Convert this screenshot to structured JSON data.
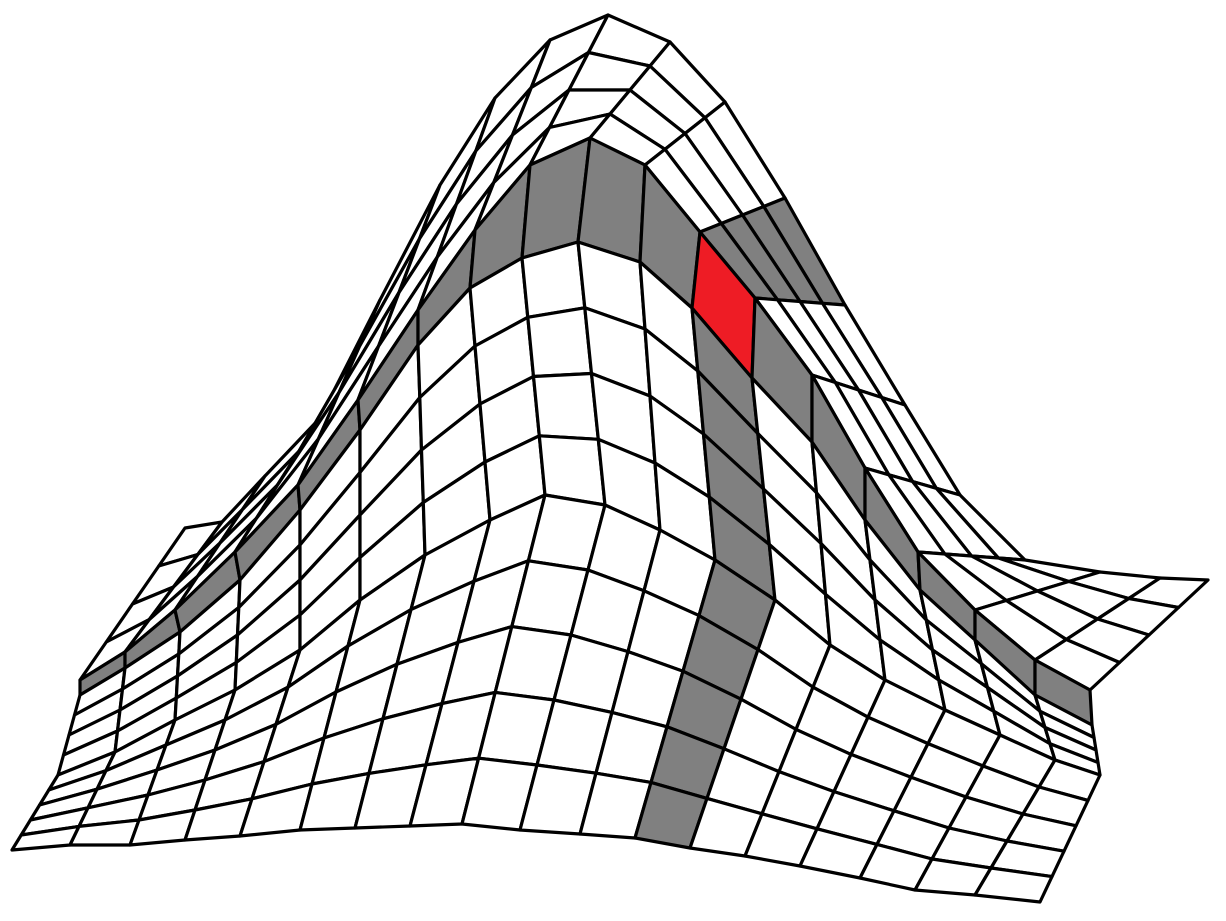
{
  "diagram": {
    "kind": "3d-mesh-surface",
    "grid": {
      "columns": 19,
      "rows": 14
    },
    "highlighted_row": 4,
    "highlighted_column": 11,
    "selected_cell": {
      "row": 4,
      "column": 11
    },
    "colors": {
      "cell_fill": "#ffffff",
      "band_fill": "#808080",
      "selected_fill": "#ee1c25",
      "edge": "#000000"
    }
  }
}
